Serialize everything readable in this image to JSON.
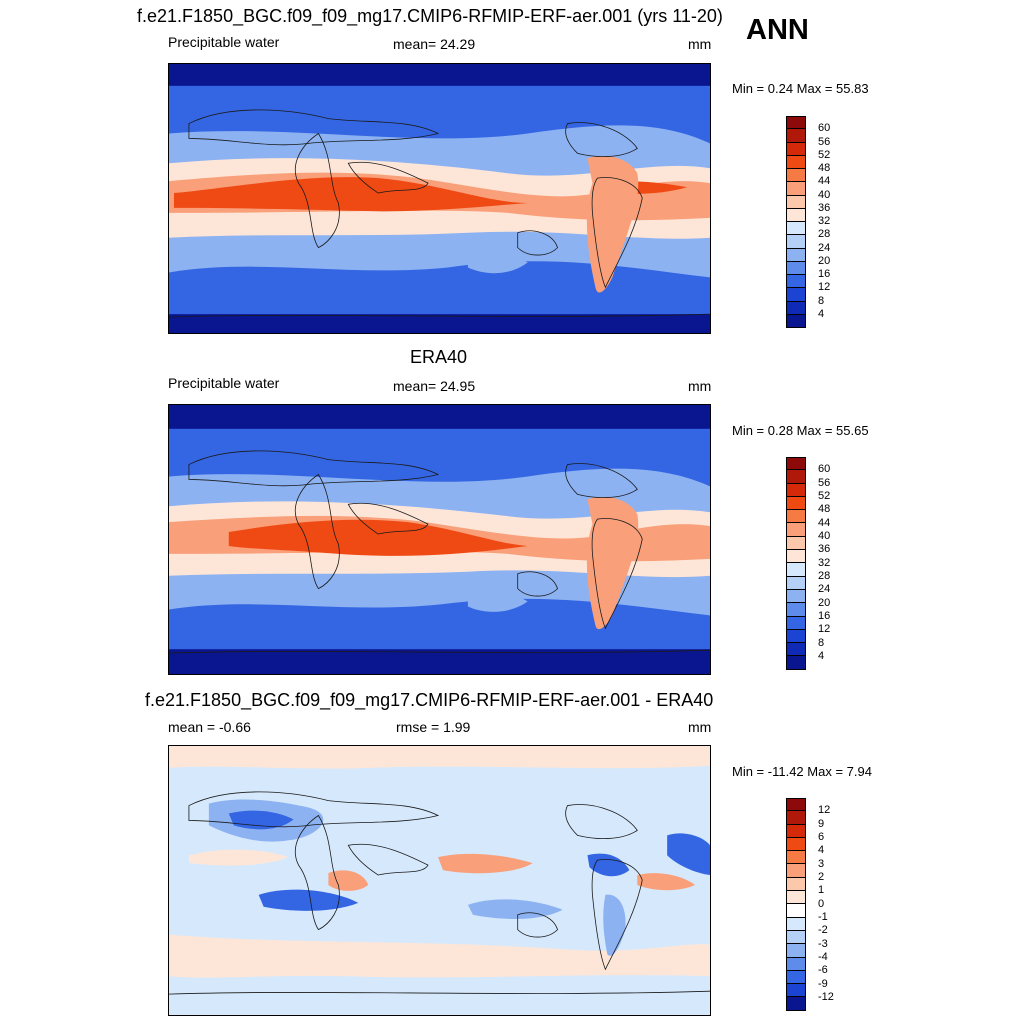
{
  "corner_label": "ANN",
  "panels": [
    {
      "id": "model",
      "title": "f.e21.F1850_BGC.f09_f09_mg17.CMIP6-RFMIP-ERF-aer.001 (yrs 11-20)",
      "left_label": "Precipitable water",
      "center_label": "mean=  24.29",
      "right_label": "mm",
      "minmax_label": "Min =   0.24 Max =  55.83",
      "legend_levels": [
        "60",
        "56",
        "52",
        "48",
        "44",
        "40",
        "36",
        "32",
        "28",
        "24",
        "20",
        "16",
        "12",
        "8",
        "4"
      ],
      "legend_colors": [
        "#8c0a0a",
        "#b0180a",
        "#d42a0a",
        "#f04a14",
        "#f57a44",
        "#f9a07a",
        "#fbc8ac",
        "#fde6d8",
        "#d6e8fb",
        "#b4d0f7",
        "#8cb2f2",
        "#5e8ceb",
        "#3466e3",
        "#1c44d2",
        "#0f2ab4",
        "#0a1690"
      ],
      "field_colors": {
        "polar": "#0a1690",
        "mid": "#3466e3",
        "sub": "#8cb2f2",
        "trop": "#fde6d8",
        "warm": "#f9a07a",
        "hot": "#f04a14"
      }
    },
    {
      "id": "obs",
      "title": "ERA40",
      "left_label": "Precipitable water",
      "center_label": "mean=  24.95",
      "right_label": "mm",
      "minmax_label": "Min =   0.28 Max =  55.65",
      "legend_levels": [
        "60",
        "56",
        "52",
        "48",
        "44",
        "40",
        "36",
        "32",
        "28",
        "24",
        "20",
        "16",
        "12",
        "8",
        "4"
      ],
      "legend_colors": [
        "#8c0a0a",
        "#b0180a",
        "#d42a0a",
        "#f04a14",
        "#f57a44",
        "#f9a07a",
        "#fbc8ac",
        "#fde6d8",
        "#d6e8fb",
        "#b4d0f7",
        "#8cb2f2",
        "#5e8ceb",
        "#3466e3",
        "#1c44d2",
        "#0f2ab4",
        "#0a1690"
      ],
      "field_colors": {
        "polar": "#0a1690",
        "mid": "#3466e3",
        "sub": "#8cb2f2",
        "trop": "#fde6d8",
        "warm": "#f9a07a",
        "hot": "#f04a14"
      }
    },
    {
      "id": "diff",
      "title": "f.e21.F1850_BGC.f09_f09_mg17.CMIP6-RFMIP-ERF-aer.001 - ERA40",
      "left_label": "mean =  -0.66",
      "center_label": "rmse =   1.99",
      "right_label": "mm",
      "minmax_label": "Min = -11.42 Max =   7.94",
      "legend_levels": [
        "12",
        "9",
        "6",
        "4",
        "3",
        "2",
        "1",
        "0",
        "-1",
        "-2",
        "-3",
        "-4",
        "-6",
        "-9",
        "-12"
      ],
      "legend_colors": [
        "#8c0a0a",
        "#b0180a",
        "#d42a0a",
        "#f04a14",
        "#f57a44",
        "#f9a07a",
        "#fbc8ac",
        "#fde6d8",
        "#ffffff",
        "#d6e8fb",
        "#b4d0f7",
        "#8cb2f2",
        "#5e8ceb",
        "#3466e3",
        "#1c44d2",
        "#0a1690"
      ],
      "field_colors": {
        "base": "#d6e8fb",
        "pos": "#fde6d8",
        "pos2": "#f9a07a",
        "neg": "#8cb2f2",
        "neg2": "#3466e3"
      }
    }
  ]
}
